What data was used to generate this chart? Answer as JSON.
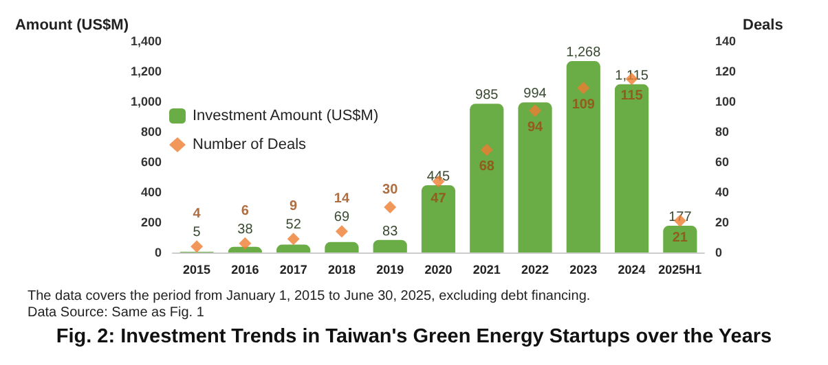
{
  "chart_data": {
    "type": "scatter",
    "title": "Fig. 2: Investment Trends in Taiwan's Green Energy Startups over the Years",
    "ylabel": "Amount (US$M)",
    "y2label": "Deals",
    "annotations": [
      "The data covers the period from January 1, 2015 to June 30, 2025, excluding debt financing.",
      "Data Source: Same as Fig. 1"
    ],
    "categories": [
      "2015",
      "2016",
      "2017",
      "2018",
      "2019",
      "2020",
      "2021",
      "2022",
      "2023",
      "2024",
      "2025H1"
    ],
    "series": [
      {
        "name": "Investment Amount (US$M)",
        "type": "bar",
        "color": "#6aac46",
        "values": [
          5,
          38,
          52,
          69,
          83,
          445,
          985,
          994,
          1268,
          1115,
          177
        ],
        "value_labels": [
          "5",
          "38",
          "52",
          "69",
          "83",
          "445",
          "985",
          "994",
          "1,268",
          "1,115",
          "177"
        ]
      },
      {
        "name": "Number of Deals",
        "axis": "y2",
        "color": "#ed7d31",
        "marker": "diamond",
        "values": [
          4,
          6,
          9,
          14,
          30,
          47,
          68,
          94,
          109,
          115,
          21
        ],
        "value_labels": [
          "4",
          "6",
          "9",
          "14",
          "30",
          "47",
          "68",
          "94",
          "109",
          "115",
          "21"
        ]
      }
    ],
    "ylim": [
      0,
      1400
    ],
    "yticks": [
      0,
      200,
      400,
      600,
      800,
      {
        "value": 1000,
        "label": "1,000"
      },
      {
        "value": 1200,
        "label": "1,200"
      },
      {
        "value": 1400,
        "label": "1,400"
      }
    ],
    "y2lim": [
      0,
      140
    ],
    "y2ticks": [
      0,
      20,
      40,
      60,
      80,
      100,
      120,
      140
    ],
    "grid": false,
    "legend": "top left"
  }
}
